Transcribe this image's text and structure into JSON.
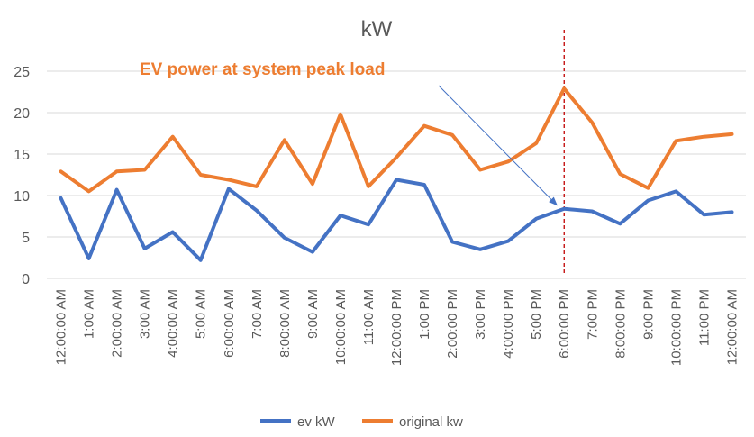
{
  "chart_data": {
    "type": "line",
    "title": "kW",
    "xlabel": "",
    "ylabel": "",
    "ylim": [
      0,
      25
    ],
    "yticks": [
      0,
      5,
      10,
      15,
      20,
      25
    ],
    "grid": true,
    "legend_position": "bottom",
    "categories": [
      "12:00:00 AM",
      "1:00 AM",
      "2:00:00 AM",
      "3:00 AM",
      "4:00:00 AM",
      "5:00 AM",
      "6:00:00 AM",
      "7:00 AM",
      "8:00:00 AM",
      "9:00 AM",
      "10:00:00 AM",
      "11:00 AM",
      "12:00:00 PM",
      "1:00 PM",
      "2:00:00 PM",
      "3:00 PM",
      "4:00:00 PM",
      "5:00 PM",
      "6:00:00 PM",
      "7:00 PM",
      "8:00:00 PM",
      "9:00 PM",
      "10:00:00 PM",
      "11:00 PM",
      "12:00:00 AM"
    ],
    "series": [
      {
        "name": "ev kW",
        "color": "#4472c4",
        "values": [
          9.7,
          2.4,
          10.7,
          3.6,
          5.6,
          2.2,
          10.8,
          8.2,
          4.9,
          3.2,
          7.6,
          6.5,
          11.9,
          11.3,
          4.4,
          3.5,
          4.5,
          7.2,
          8.4,
          8.1,
          6.6,
          9.4,
          10.5,
          7.7,
          8.0
        ]
      },
      {
        "name": "original kw",
        "color": "#ed7d31",
        "values": [
          12.9,
          10.5,
          12.9,
          13.1,
          17.1,
          12.5,
          11.9,
          11.1,
          16.7,
          11.4,
          19.8,
          11.1,
          14.6,
          18.4,
          17.3,
          13.1,
          14.1,
          16.3,
          22.9,
          18.8,
          12.6,
          10.9,
          16.6,
          17.1,
          17.4
        ]
      }
    ],
    "annotation": {
      "text": "EV power at system peak load",
      "color": "#ed7d31",
      "target_category_index": 18,
      "vline_color": "#c00000",
      "arrow_color": "#4472c4"
    }
  }
}
